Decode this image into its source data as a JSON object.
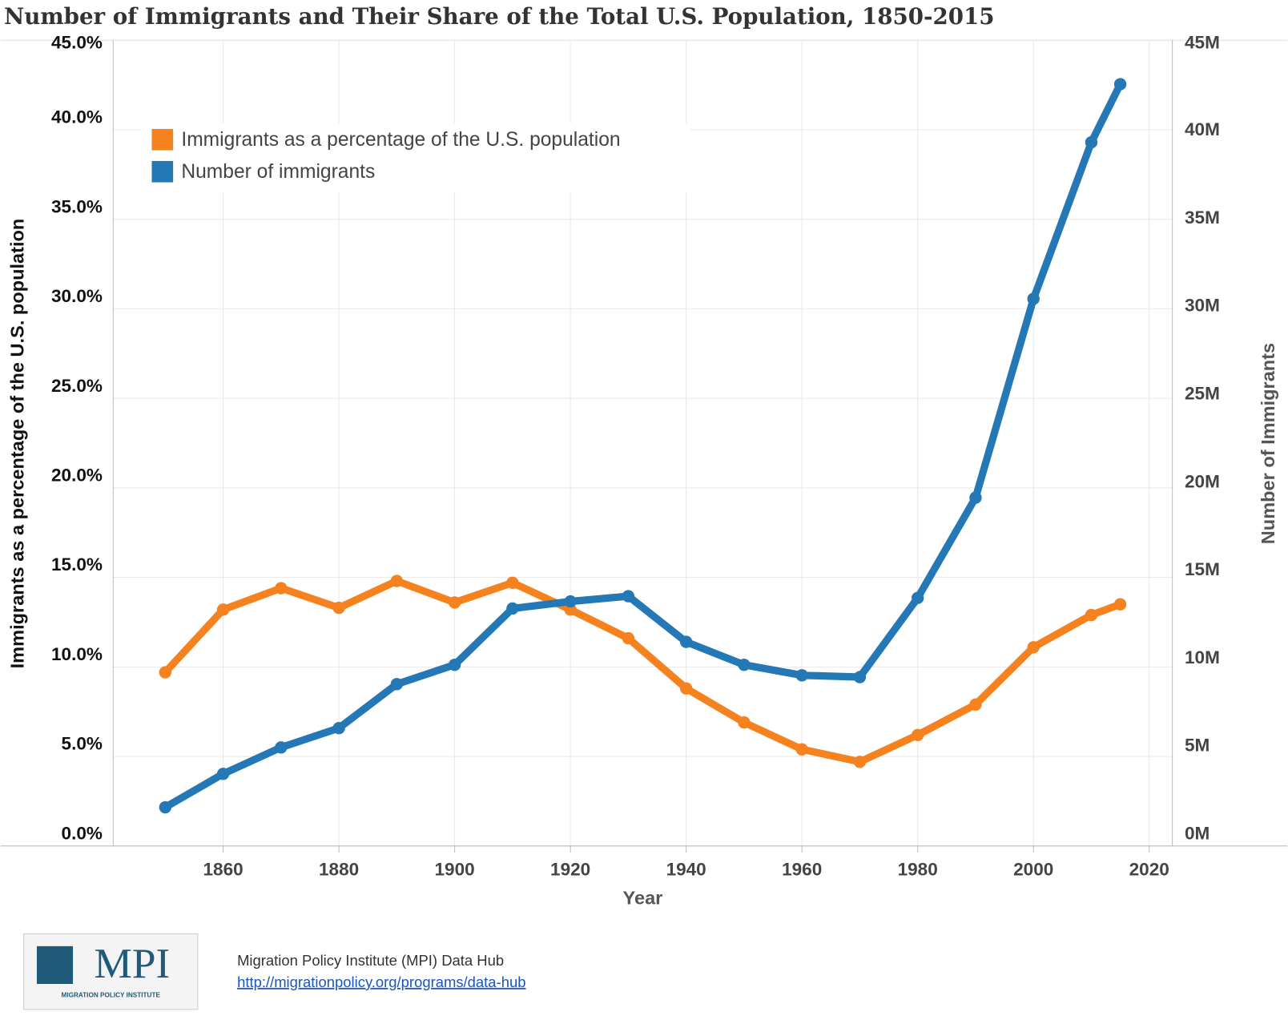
{
  "chart_data": {
    "type": "line",
    "title": "Number of Immigrants and Their Share of the Total U.S. Population, 1850-2015",
    "x_label": "Year",
    "y_label": "Immigrants as a percentage of the U.S. population",
    "y2_label": "Number of Immigrants",
    "x": [
      1850,
      1860,
      1870,
      1880,
      1890,
      1900,
      1910,
      1920,
      1930,
      1940,
      1950,
      1960,
      1970,
      1980,
      1990,
      2000,
      2010,
      2015
    ],
    "xlim": [
      1841,
      2024
    ],
    "xticks": [
      1860,
      1880,
      1900,
      1920,
      1940,
      1960,
      1980,
      2000,
      2020
    ],
    "ylim": [
      0,
      45
    ],
    "yticks": [
      {
        "value": 0,
        "label": "0.0%"
      },
      {
        "value": 5,
        "label": "5.0%"
      },
      {
        "value": 10,
        "label": "10.0%"
      },
      {
        "value": 15,
        "label": "15.0%"
      },
      {
        "value": 20,
        "label": "20.0%"
      },
      {
        "value": 25,
        "label": "25.0%"
      },
      {
        "value": 30,
        "label": "30.0%"
      },
      {
        "value": 35,
        "label": "35.0%"
      },
      {
        "value": 40,
        "label": "40.0%"
      },
      {
        "value": 45,
        "label": "45.0%"
      }
    ],
    "y2lim": [
      0,
      45800000
    ],
    "y2ticks": [
      {
        "value": 0,
        "label": "0M"
      },
      {
        "value": 5000000,
        "label": "5M"
      },
      {
        "value": 10000000,
        "label": "10M"
      },
      {
        "value": 15000000,
        "label": "15M"
      },
      {
        "value": 20000000,
        "label": "20M"
      },
      {
        "value": 25000000,
        "label": "25M"
      },
      {
        "value": 30000000,
        "label": "30M"
      },
      {
        "value": 35000000,
        "label": "35M"
      },
      {
        "value": 40000000,
        "label": "40M"
      },
      {
        "value": 45000000,
        "label": "45M"
      }
    ],
    "grid": true,
    "legend": "top-left",
    "series": [
      {
        "name": "Immigrants as a percentage of the U.S. population",
        "color": "#f5821f",
        "axis": "y",
        "values": [
          9.7,
          13.2,
          14.4,
          13.3,
          14.8,
          13.6,
          14.7,
          13.2,
          11.6,
          8.8,
          6.9,
          5.4,
          4.7,
          6.2,
          7.9,
          11.1,
          12.9,
          13.5
        ]
      },
      {
        "name": "Number of immigrants",
        "color": "#2378b5",
        "axis": "y2",
        "values": [
          2200000,
          4100000,
          5600000,
          6700000,
          9200000,
          10300000,
          13500000,
          13900000,
          14200000,
          11600000,
          10300000,
          9700000,
          9600000,
          14100000,
          19800000,
          31100000,
          40000000,
          43300000
        ]
      }
    ]
  },
  "logo": {
    "text": "MPI",
    "subtitle": "MIGRATION POLICY INSTITUTE"
  },
  "source": {
    "text": "Migration Policy Institute (MPI) Data Hub",
    "link": "http://migrationpolicy.org/programs/data-hub"
  }
}
